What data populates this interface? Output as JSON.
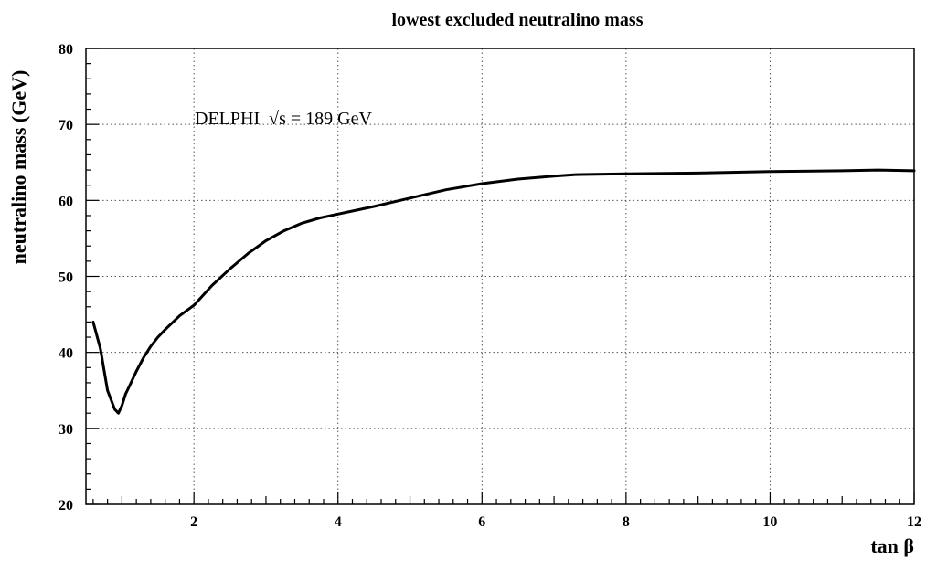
{
  "chart_data": {
    "type": "line",
    "title": "lowest excluded neutralino mass",
    "xlabel": "tan β",
    "ylabel": "neutralino mass (GeV)",
    "annotation": "DELPHI  √s = 189 GeV",
    "xlim": [
      0.5,
      12
    ],
    "ylim": [
      20,
      80
    ],
    "xticks": [
      2,
      4,
      6,
      8,
      10,
      12
    ],
    "yticks": [
      20,
      30,
      40,
      50,
      60,
      70,
      80
    ],
    "grid": true,
    "series": [
      {
        "x": [
          0.6,
          0.7,
          0.8,
          0.9,
          0.95,
          1.0,
          1.05,
          1.1,
          1.2,
          1.3,
          1.4,
          1.5,
          1.6,
          1.8,
          2.0,
          2.25,
          2.5,
          2.75,
          3.0,
          3.25,
          3.5,
          3.75,
          4.0,
          4.5,
          5.0,
          5.5,
          6.0,
          6.5,
          7.0,
          7.3,
          8.0,
          9.0,
          10.0,
          11.0,
          11.5,
          12.0
        ],
        "y": [
          44,
          40.5,
          35,
          32.5,
          32,
          33,
          34.5,
          35.5,
          37.5,
          39.3,
          40.8,
          42,
          43,
          44.8,
          46.2,
          48.8,
          51,
          53,
          54.7,
          56,
          57,
          57.7,
          58.2,
          59.2,
          60.3,
          61.4,
          62.2,
          62.8,
          63.2,
          63.4,
          63.5,
          63.6,
          63.8,
          63.9,
          64.0,
          63.9
        ]
      }
    ]
  }
}
